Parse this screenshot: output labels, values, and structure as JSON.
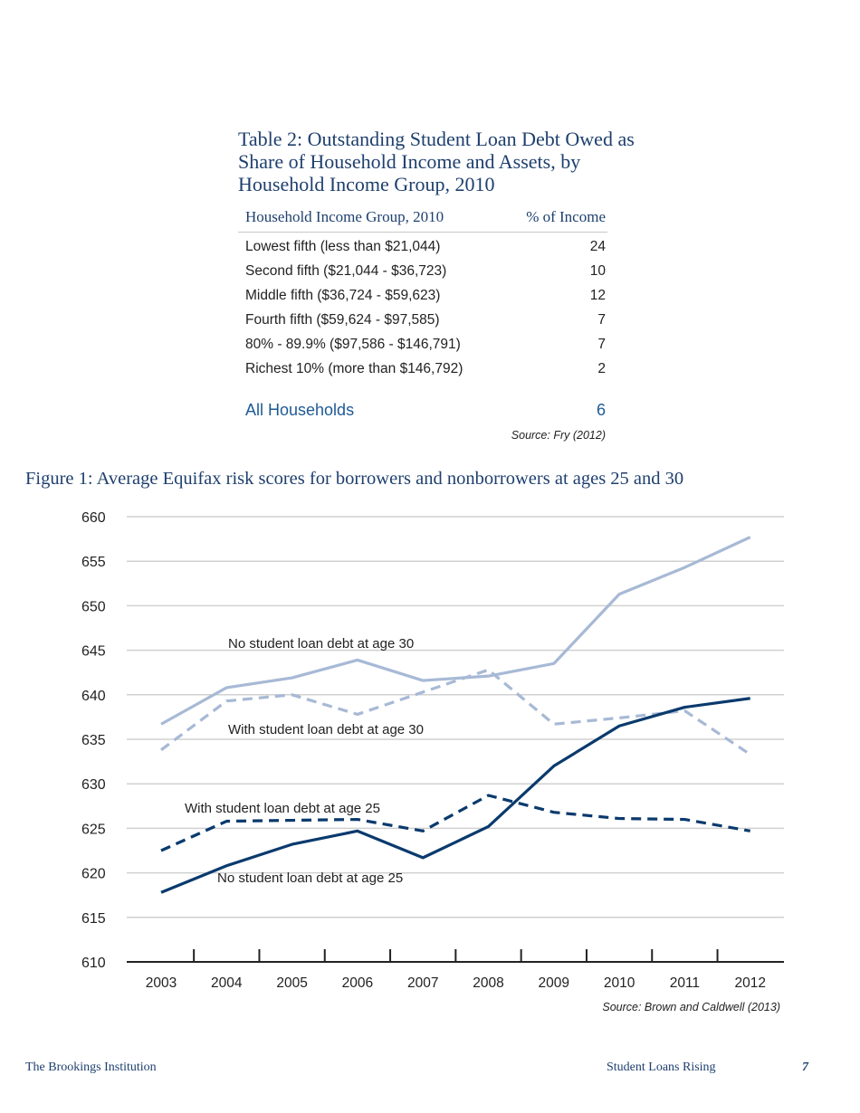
{
  "table": {
    "title": "Table 2: Outstanding Student Loan Debt Owed as Share of Household Income and Assets, by Household Income Group, 2010",
    "headers": [
      "Household Income Group, 2010",
      "% of Income"
    ],
    "rows": [
      [
        "Lowest fifth (less than $21,044)",
        "24"
      ],
      [
        "Second fifth ($21,044 - $36,723)",
        "10"
      ],
      [
        "Middle fifth ($36,724 - $59,623)",
        "12"
      ],
      [
        "Fourth fifth ($59,624 - $97,585)",
        "7"
      ],
      [
        "80% - 89.9% ($97,586 - $146,791)",
        "7"
      ],
      [
        "Richest 10% (more than $146,792)",
        "2"
      ]
    ],
    "total": [
      "All Households",
      "6"
    ],
    "source": "Source: Fry (2012)"
  },
  "chart_data": {
    "type": "line",
    "title": "Figure 1: Average Equifax risk scores for borrowers and nonborrowers at ages 25 and 30",
    "xlabel": "",
    "ylabel": "",
    "x": [
      2003,
      2004,
      2005,
      2006,
      2007,
      2008,
      2009,
      2010,
      2011,
      2012
    ],
    "ylim": [
      610,
      660
    ],
    "yticks": [
      610,
      615,
      620,
      625,
      630,
      635,
      640,
      645,
      650,
      655,
      660
    ],
    "grid": true,
    "series": [
      {
        "name": "No student loan debt at age 30",
        "color": "#a7b9d5",
        "dash": false,
        "values": [
          636.7,
          640.8,
          641.9,
          643.9,
          641.6,
          642.1,
          643.5,
          651.3,
          654.3,
          657.7
        ]
      },
      {
        "name": "With student loan debt at age 30",
        "color": "#a7b9d5",
        "dash": true,
        "values": [
          633.8,
          639.3,
          640.0,
          637.8,
          640.3,
          642.8,
          636.7,
          637.4,
          638.2,
          633.3
        ]
      },
      {
        "name": "With student loan debt at age 25",
        "color": "#0a3a6d",
        "dash": true,
        "values": [
          622.5,
          625.8,
          625.9,
          626.0,
          624.7,
          628.7,
          626.8,
          626.1,
          626.0,
          624.7
        ]
      },
      {
        "name": "No student loan debt at age 25",
        "color": "#0a3a6d",
        "dash": false,
        "values": [
          617.8,
          620.8,
          623.2,
          624.7,
          621.7,
          625.2,
          632.0,
          636.5,
          638.6,
          639.6
        ]
      }
    ],
    "source": "Source: Brown and Caldwell (2013)"
  },
  "footer": {
    "left": "The Brookings Institution",
    "right": "Student Loans Rising",
    "page": "7"
  }
}
